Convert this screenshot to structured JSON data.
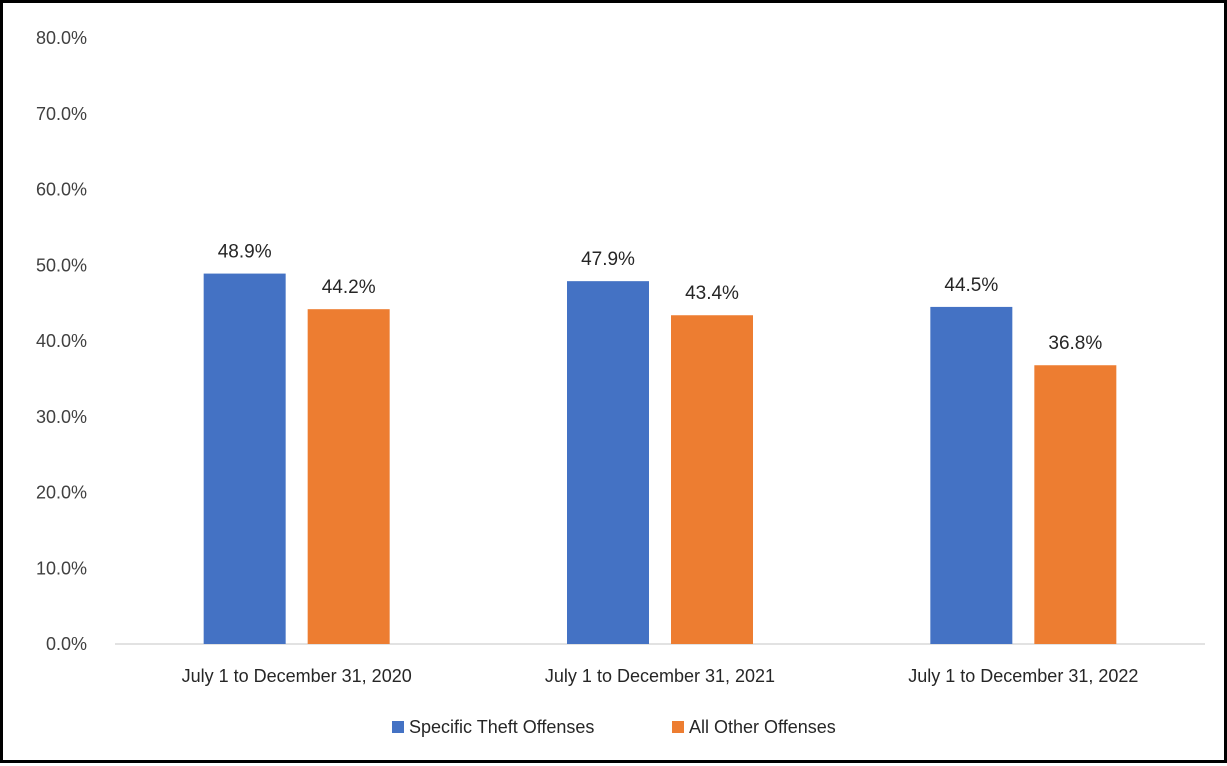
{
  "chart_data": {
    "type": "bar",
    "title": "",
    "xlabel": "",
    "ylabel": "",
    "ylim": [
      0,
      80
    ],
    "y_ticks": [
      "0.0%",
      "10.0%",
      "20.0%",
      "30.0%",
      "40.0%",
      "50.0%",
      "60.0%",
      "70.0%",
      "80.0%"
    ],
    "y_tick_values": [
      0,
      10,
      20,
      30,
      40,
      50,
      60,
      70,
      80
    ],
    "grid": false,
    "legend_position": "bottom",
    "categories": [
      "July 1 to December 31, 2020",
      "July 1 to December 31, 2021",
      "July 1 to December 31, 2022"
    ],
    "series": [
      {
        "name": "Specific Theft Offenses",
        "color": "#4472C4",
        "values": [
          48.9,
          47.9,
          44.5
        ],
        "labels": [
          "48.9%",
          "47.9%",
          "44.5%"
        ]
      },
      {
        "name": "All Other Offenses",
        "color": "#ED7D31",
        "values": [
          44.2,
          43.4,
          36.8
        ],
        "labels": [
          "44.2%",
          "43.4%",
          "36.8%"
        ]
      }
    ]
  }
}
